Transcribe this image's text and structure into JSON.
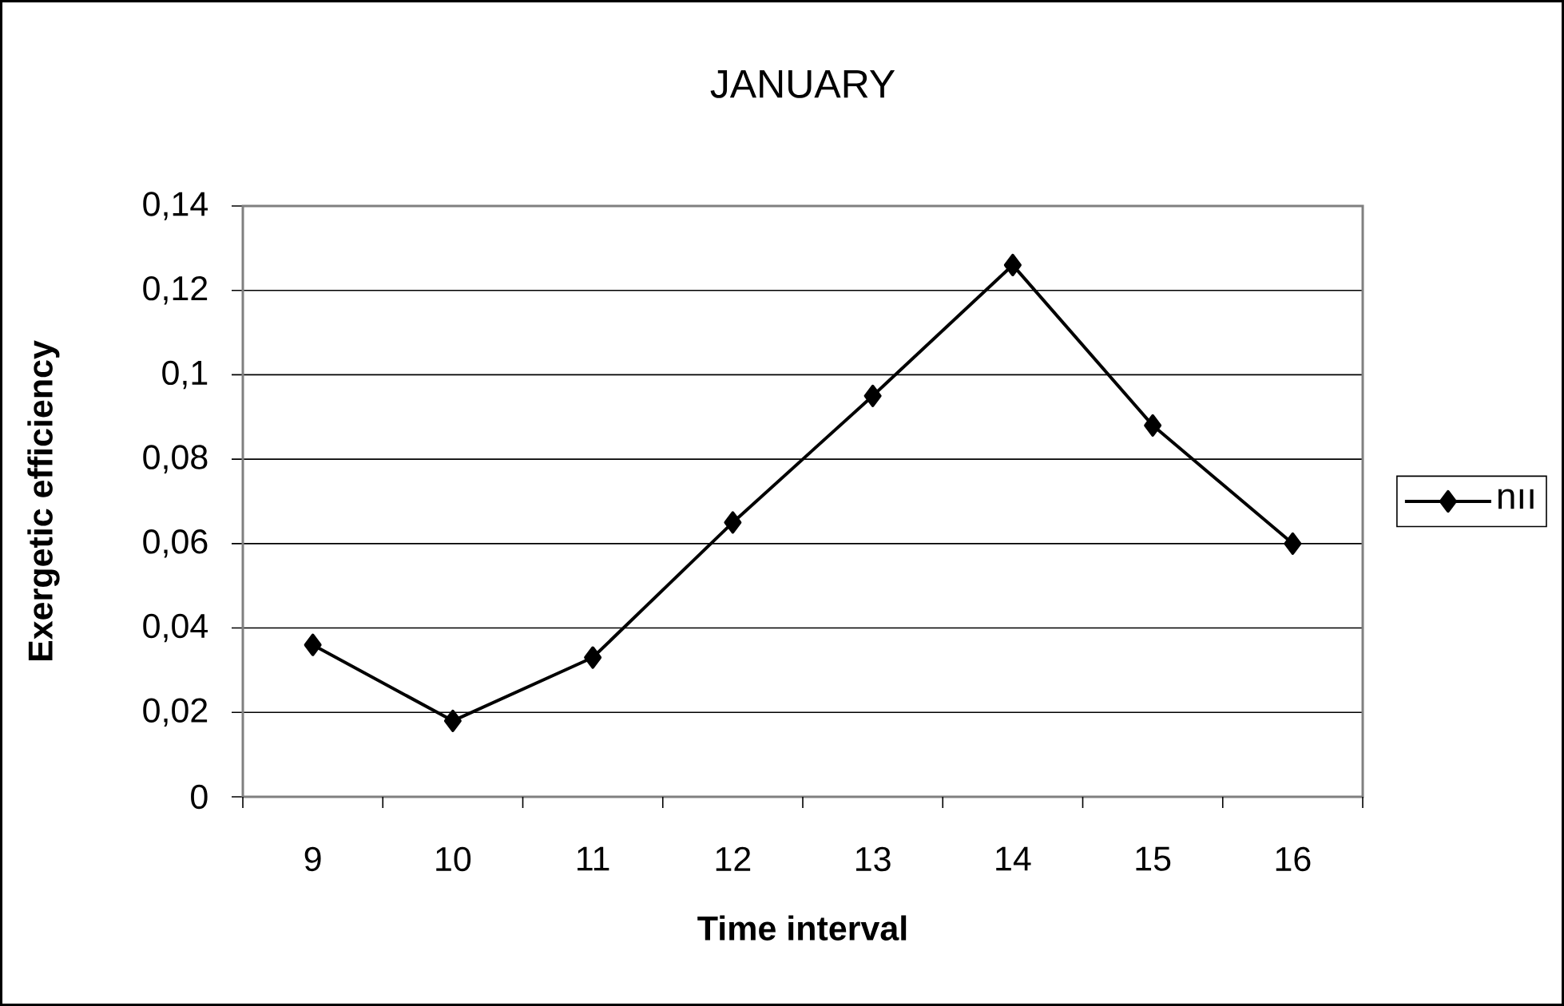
{
  "chart_data": {
    "type": "line",
    "title": "JANUARY",
    "xlabel": "Time interval",
    "ylabel": "Exergetic efficiency",
    "categories": [
      "9",
      "10",
      "11",
      "12",
      "13",
      "14",
      "15",
      "16"
    ],
    "series": [
      {
        "name": "nıı",
        "color": "#000000",
        "values": [
          0.036,
          0.018,
          0.033,
          0.065,
          0.095,
          0.126,
          0.088,
          0.06
        ]
      }
    ],
    "ylim": [
      0,
      0.14
    ],
    "yticks": [
      0,
      {
        "value": 0.02,
        "label": "0,02"
      },
      {
        "value": 0.04,
        "label": "0,04"
      },
      {
        "value": 0.06,
        "label": "0,06"
      },
      {
        "value": 0.08,
        "label": "0,08"
      },
      {
        "value": 0.1,
        "label": "0,1"
      },
      {
        "value": 0.12,
        "label": "0,12"
      },
      {
        "value": 0.14,
        "label": "0,14"
      }
    ],
    "grid": "y",
    "legend": "right",
    "marker": "diamond",
    "line_style": "solid"
  }
}
